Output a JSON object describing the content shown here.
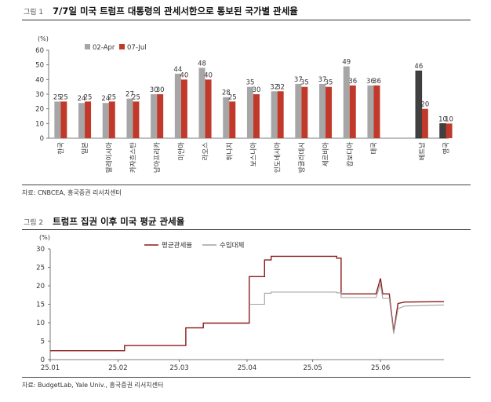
{
  "figure1": {
    "number": "그림 1",
    "title": "7/7일 미국 트럼프 대통령의 관세서한으로 통보된 국가별 관세율",
    "source": "자료: CNBCEA, 흥국증권 리서치센터"
  },
  "figure2": {
    "number": "그림 2",
    "title": "트럼프 집권 이후 미국 평균 관세율",
    "source": "자료: BudgetLab, Yale Univ., 흥국증권 리서치센터"
  },
  "chart_data": [
    {
      "type": "bar",
      "yunit": "(%)",
      "ylim": [
        0,
        60
      ],
      "yticks": [
        0,
        10,
        20,
        30,
        40,
        50,
        60
      ],
      "grid": false,
      "legend_position": "top-left",
      "categories": [
        "한국",
        "일본",
        "말레이시아",
        "카자흐스탄",
        "남아프리카",
        "미얀마",
        "라오스",
        "튀니지",
        "보스니아",
        "인도네시아",
        "방글라데시",
        "세르비아",
        "캄보디아",
        "태국",
        "베트남",
        "영국"
      ],
      "series": [
        {
          "name": "02-Apr",
          "color": "#a6a6a6",
          "highlight_color": "#404040",
          "values": [
            25,
            24,
            24,
            27,
            30,
            44,
            48,
            28,
            35,
            32,
            37,
            37,
            49,
            36,
            46,
            10
          ]
        },
        {
          "name": "07-Jul",
          "color": "#c0392b",
          "values": [
            25,
            25,
            25,
            25,
            30,
            40,
            40,
            25,
            30,
            32,
            35,
            35,
            36,
            36,
            20,
            10
          ]
        }
      ]
    },
    {
      "type": "line",
      "yunit": "(%)",
      "ylim": [
        0,
        30
      ],
      "yticks": [
        0,
        5,
        10,
        15,
        20,
        25,
        30
      ],
      "xticks": [
        "25.01",
        "25.02",
        "25.03",
        "25.04",
        "25.05",
        "25.06"
      ],
      "xrange": [
        "2025-01-01",
        "2025-06-30"
      ],
      "grid": false,
      "legend_position": "top-center",
      "series": [
        {
          "name": "평균관세율",
          "color": "#8b1a1a",
          "points": [
            [
              "2025-01-01",
              2.4
            ],
            [
              "2025-02-04",
              2.4
            ],
            [
              "2025-02-04",
              3.8
            ],
            [
              "2025-03-04",
              3.8
            ],
            [
              "2025-03-04",
              8.6
            ],
            [
              "2025-03-12",
              8.6
            ],
            [
              "2025-03-12",
              9.9
            ],
            [
              "2025-04-02",
              9.9
            ],
            [
              "2025-04-02",
              22.5
            ],
            [
              "2025-04-09",
              22.5
            ],
            [
              "2025-04-09",
              27.0
            ],
            [
              "2025-04-12",
              27.0
            ],
            [
              "2025-04-12",
              28.0
            ],
            [
              "2025-05-12",
              28.0
            ],
            [
              "2025-05-12",
              27.5
            ],
            [
              "2025-05-14",
              27.5
            ],
            [
              "2025-05-14",
              17.8
            ],
            [
              "2025-05-30",
              17.8
            ],
            [
              "2025-06-01",
              22.0
            ],
            [
              "2025-06-02",
              17.8
            ],
            [
              "2025-06-05",
              17.8
            ],
            [
              "2025-06-07",
              7.5
            ],
            [
              "2025-06-09",
              15.2
            ],
            [
              "2025-06-12",
              15.6
            ],
            [
              "2025-06-30",
              15.7
            ]
          ]
        },
        {
          "name": "수입대체",
          "color": "#a0a0a0",
          "points": [
            [
              "2025-04-02",
              15.0
            ],
            [
              "2025-04-09",
              15.0
            ],
            [
              "2025-04-09",
              18.0
            ],
            [
              "2025-04-12",
              18.0
            ],
            [
              "2025-04-12",
              18.3
            ],
            [
              "2025-05-12",
              18.3
            ],
            [
              "2025-05-12",
              18.1
            ],
            [
              "2025-05-14",
              18.1
            ],
            [
              "2025-05-14",
              16.8
            ],
            [
              "2025-05-30",
              16.8
            ],
            [
              "2025-06-01",
              20.5
            ],
            [
              "2025-06-02",
              16.6
            ],
            [
              "2025-06-05",
              16.6
            ],
            [
              "2025-06-07",
              7.0
            ],
            [
              "2025-06-09",
              13.8
            ],
            [
              "2025-06-12",
              14.5
            ],
            [
              "2025-06-30",
              14.8
            ]
          ]
        }
      ]
    }
  ]
}
